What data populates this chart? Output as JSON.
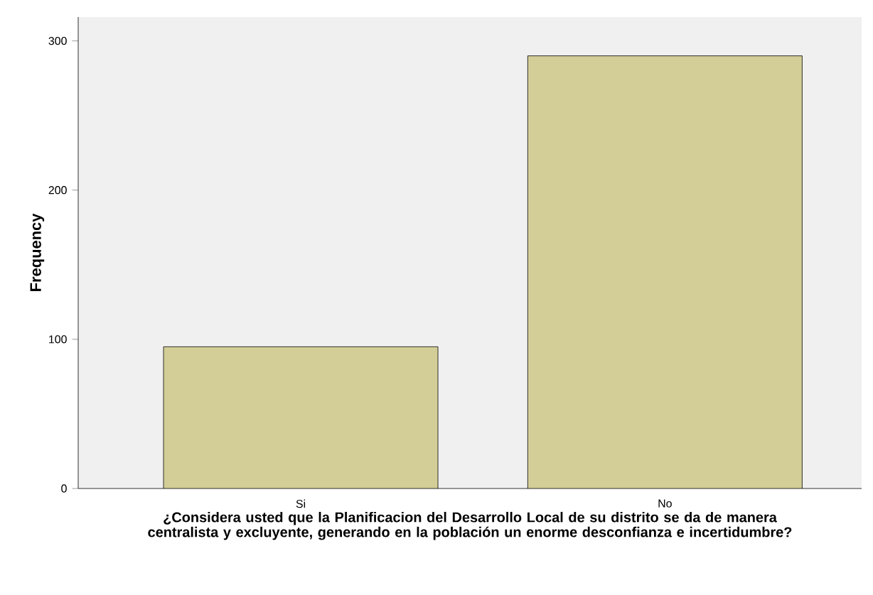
{
  "chart_data": {
    "type": "bar",
    "xlabel": "¿Considera usted que la Planificacion del Desarrollo Local de su distrito se da de manera centralista y excluyente, generando en la población un enorme desconfianza e incertidumbre?",
    "ylabel": "Frequency",
    "categories": [
      "Si",
      "No"
    ],
    "values": [
      95,
      290
    ],
    "color": "#d3ce97",
    "ylim": [
      0,
      316
    ],
    "yticks": [
      0,
      100,
      200,
      300
    ],
    "grid": false
  }
}
